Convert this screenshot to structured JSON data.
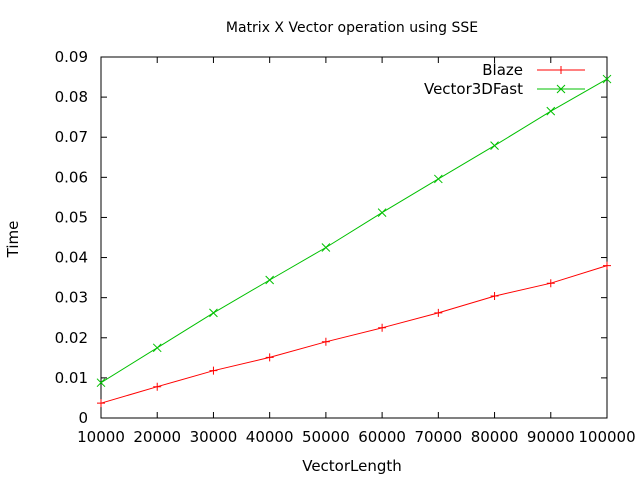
{
  "chart_data": {
    "type": "line",
    "title": "Matrix X Vector operation using SSE",
    "xlabel": "VectorLength",
    "ylabel": "Time",
    "xlim": [
      10000,
      100000
    ],
    "ylim": [
      0,
      0.09
    ],
    "x_ticks": [
      "10000",
      "20000",
      "30000",
      "40000",
      "50000",
      "60000",
      "70000",
      "80000",
      "90000",
      "100000"
    ],
    "y_ticks": [
      "0",
      "0.01",
      "0.02",
      "0.03",
      "0.04",
      "0.05",
      "0.06",
      "0.07",
      "0.08",
      "0.09"
    ],
    "grid": false,
    "legend_position": "top-right",
    "x": [
      10000,
      20000,
      30000,
      40000,
      50000,
      60000,
      70000,
      80000,
      90000,
      100000
    ],
    "series": [
      {
        "name": "Blaze",
        "color": "#ff0000",
        "marker": "plus",
        "values": [
          0.0037,
          0.0078,
          0.0118,
          0.0151,
          0.019,
          0.0225,
          0.0262,
          0.0304,
          0.0336,
          0.038
        ]
      },
      {
        "name": "Vector3DFast",
        "color": "#00c000",
        "marker": "cross",
        "values": [
          0.0088,
          0.0175,
          0.0262,
          0.0344,
          0.0425,
          0.0512,
          0.0596,
          0.0679,
          0.0765,
          0.0845
        ]
      }
    ]
  }
}
